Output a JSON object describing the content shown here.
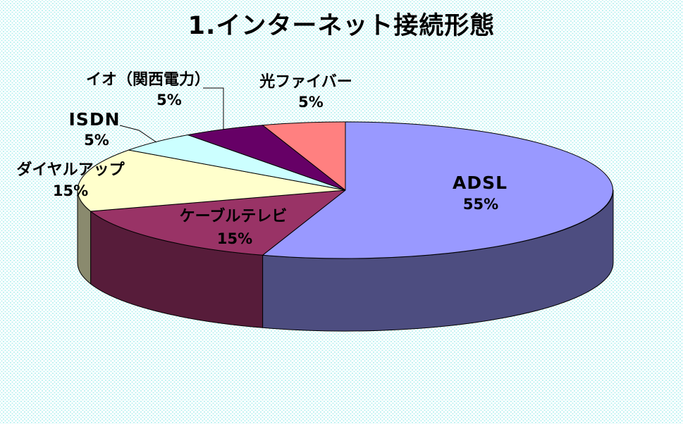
{
  "title": "1.インターネット接続形態",
  "chart_data": {
    "type": "pie",
    "is_3d": true,
    "title": "1.インターネット接続形態",
    "start_angle_deg": 0,
    "direction": "clockwise",
    "legend_position": "none",
    "background": {
      "base_color": "#FFFFFF",
      "dot_color": "#B7F0F0"
    },
    "outline_color": "#000000",
    "slices": [
      {
        "key": "adsl",
        "label": "ADSL",
        "value_pct": 55,
        "display": "55%",
        "color": "#9999FF",
        "side_color": "#4D4D80"
      },
      {
        "key": "cable-tv",
        "label": "ケーブルテレビ",
        "value_pct": 15,
        "display": "15%",
        "color": "#993366",
        "side_color": "#571C3A"
      },
      {
        "key": "dialup",
        "label": "ダイヤルアップ",
        "value_pct": 15,
        "display": "15%",
        "color": "#FFFFCC",
        "side_color": "#8A8A6E"
      },
      {
        "key": "isdn",
        "label": "ISDN",
        "value_pct": 5,
        "display": "5%",
        "color": "#CCFFFF",
        "side_color": "#668080"
      },
      {
        "key": "eo-kansai",
        "label": "イオ（関西電力）",
        "value_pct": 5,
        "display": "5%",
        "color": "#660066",
        "side_color": "#330033"
      },
      {
        "key": "fiber",
        "label": "光ファイバー",
        "value_pct": 5,
        "display": "5%",
        "color": "#FF8080",
        "side_color": "#804040"
      }
    ]
  }
}
